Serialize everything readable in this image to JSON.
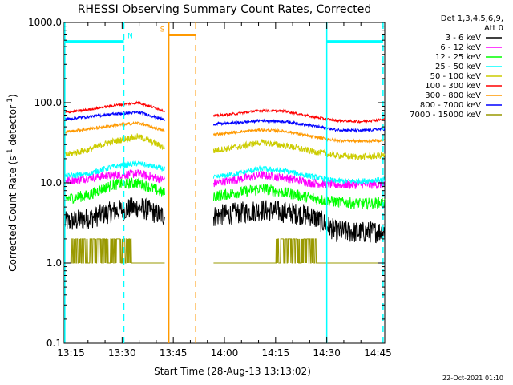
{
  "chart_data": {
    "type": "line",
    "title": "RHESSI Observing Summary Count Rates, Corrected",
    "xlabel": "Start Time (28-Aug-13 13:13:02)",
    "ylabel": "Corrected Count Rate (s",
    "ylabel_sup": "-1",
    "ylabel_tail": " detector",
    "ylabel_sup2": "-1",
    "ylabel_close": ")",
    "yscale": "log",
    "ylim": [
      0.1,
      1000.0
    ],
    "y_ticks": [
      {
        "v": 1000.0,
        "label": "1000.0"
      },
      {
        "v": 100.0,
        "label": "100.0"
      },
      {
        "v": 10.0,
        "label": "10.0"
      },
      {
        "v": 1.0,
        "label": "1.0"
      },
      {
        "v": 0.1,
        "label": "0.1"
      }
    ],
    "xlim_minutes": [
      13.0,
      107.0
    ],
    "x_ticks": [
      {
        "m": 15,
        "label": "13:15"
      },
      {
        "m": 30,
        "label": "13:30"
      },
      {
        "m": 45,
        "label": "13:45"
      },
      {
        "m": 60,
        "label": "14:00"
      },
      {
        "m": 75,
        "label": "14:15"
      },
      {
        "m": 90,
        "label": "14:30"
      },
      {
        "m": 105,
        "label": "14:45"
      }
    ],
    "legend": {
      "header1": "Det 1,3,4,5,6,9,",
      "header2": "Att 0",
      "placement": "right"
    },
    "data_segments_minutes": [
      [
        13.2,
        42.5
      ],
      [
        56.8,
        107.0
      ]
    ],
    "series": [
      {
        "name": "3 - 6 keV",
        "color": "#000000",
        "levels": [
          3.2,
          3.6,
          4.4,
          5.0,
          3.9,
          3.3,
          3.8,
          4.2,
          4.6,
          4.3,
          3.9,
          2.5,
          2.4,
          2.5
        ]
      },
      {
        "name": "6 - 12 keV",
        "color": "#ff00ff",
        "levels": [
          10.5,
          11.5,
          12.5,
          13.0,
          11.0,
          9.5,
          9.8,
          11.0,
          12.5,
          11.5,
          10.0,
          9.5,
          9.5,
          9.5
        ]
      },
      {
        "name": "12 - 25 keV",
        "color": "#00ff00",
        "levels": [
          6.3,
          7.0,
          9.5,
          10.0,
          7.5,
          6.5,
          6.8,
          7.5,
          8.5,
          7.5,
          6.5,
          5.8,
          5.5,
          5.7
        ]
      },
      {
        "name": "25 - 50 keV",
        "color": "#00ffff",
        "levels": [
          12.0,
          13.0,
          16.0,
          17.5,
          15.0,
          11.5,
          11.5,
          13.0,
          15.0,
          14.0,
          12.0,
          10.5,
          10.5,
          11.0
        ]
      },
      {
        "name": "50 - 100 keV",
        "color": "#cccc00",
        "levels": [
          22.0,
          26.0,
          33.0,
          38.0,
          28.0,
          25.0,
          25.0,
          28.0,
          32.0,
          29.0,
          25.0,
          22.0,
          21.0,
          22.0
        ]
      },
      {
        "name": "100 - 300 keV",
        "color": "#ff0000",
        "levels": [
          75.0,
          82.0,
          92.0,
          100.0,
          80.0,
          67.0,
          68.0,
          73.0,
          80.0,
          78.0,
          67.0,
          60.0,
          58.0,
          62.0
        ]
      },
      {
        "name": "300 - 800 keV",
        "color": "#ff9900",
        "levels": [
          43.0,
          47.0,
          52.0,
          56.0,
          45.0,
          40.0,
          40.0,
          43.0,
          46.0,
          44.0,
          38.0,
          34.0,
          33.0,
          34.0
        ]
      },
      {
        "name": "800 - 7000 keV",
        "color": "#0000ff",
        "levels": [
          62.0,
          67.0,
          72.0,
          76.0,
          62.0,
          55.0,
          54.0,
          56.0,
          60.0,
          58.0,
          52.0,
          46.0,
          45.0,
          47.0
        ]
      },
      {
        "name": "7000 - 15000 keV",
        "color": "#999900",
        "levels": [
          1.2,
          1.2,
          1.2,
          1.2,
          1.0,
          1.0,
          1.0,
          1.0,
          1.3,
          1.3,
          1.0,
          1.0,
          1.0,
          1.0
        ]
      }
    ],
    "annotations": [
      {
        "label": "N",
        "color": "#00ffff",
        "x0": 13.0,
        "x1": 30.5,
        "y": 580.0,
        "kind": "bar"
      },
      {
        "label": "N",
        "color": "#00ffff",
        "x0": 90.0,
        "x1": 106.5,
        "y": 580.0,
        "kind": "bar_nolabel"
      },
      {
        "label": "S",
        "color": "#ff9900",
        "x0": 43.7,
        "x1": 51.6,
        "y": 700.0,
        "kind": "bar"
      }
    ],
    "vlines": [
      {
        "m": 13.2,
        "color": "#00ffff",
        "style": "solid"
      },
      {
        "m": 30.5,
        "color": "#00ffff",
        "style": "dashed"
      },
      {
        "m": 90.0,
        "color": "#00ffff",
        "style": "solid"
      },
      {
        "m": 106.5,
        "color": "#00ffff",
        "style": "dashed"
      },
      {
        "m": 43.7,
        "color": "#ff9900",
        "style": "solid"
      },
      {
        "m": 51.6,
        "color": "#ff9900",
        "style": "dashed"
      }
    ],
    "footer": "22-Oct-2021 01:10"
  }
}
